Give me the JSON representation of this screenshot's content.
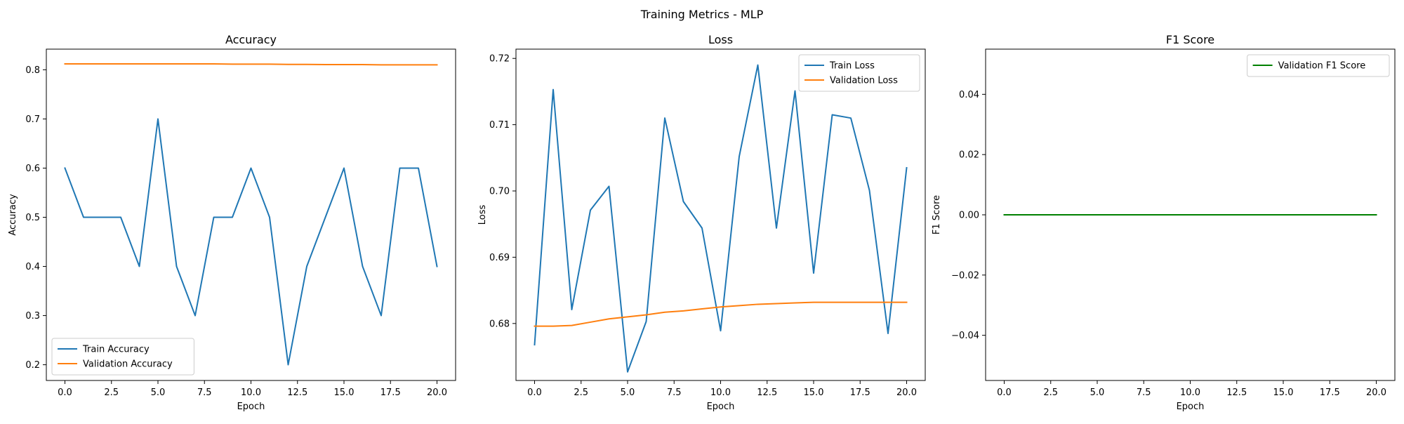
{
  "figure": {
    "suptitle": "Training Metrics - MLP"
  },
  "chart_data": [
    {
      "type": "line",
      "title": "Accuracy",
      "xlabel": "Epoch",
      "ylabel": "Accuracy",
      "xlim": [
        -1,
        21
      ],
      "ylim": [
        0.168,
        0.842
      ],
      "xticks": [
        0.0,
        2.5,
        5.0,
        7.5,
        10.0,
        12.5,
        15.0,
        17.5,
        20.0
      ],
      "xtick_labels": [
        "0.0",
        "2.5",
        "5.0",
        "7.5",
        "10.0",
        "12.5",
        "15.0",
        "17.5",
        "20.0"
      ],
      "yticks": [
        0.2,
        0.3,
        0.4,
        0.5,
        0.6,
        0.7,
        0.8
      ],
      "ytick_labels": [
        "0.2",
        "0.3",
        "0.4",
        "0.5",
        "0.6",
        "0.7",
        "0.8"
      ],
      "legend_position": "lower-left",
      "x": [
        0,
        1,
        2,
        3,
        4,
        5,
        6,
        7,
        8,
        9,
        10,
        11,
        12,
        13,
        14,
        15,
        16,
        17,
        18,
        19,
        20
      ],
      "series": [
        {
          "name": "Train Accuracy",
          "color": "#1f77b4",
          "values": [
            0.6,
            0.5,
            0.5,
            0.5,
            0.4,
            0.7,
            0.4,
            0.3,
            0.5,
            0.5,
            0.6,
            0.5,
            0.2,
            0.4,
            0.5,
            0.6,
            0.4,
            0.3,
            0.6,
            0.6,
            0.4
          ]
        },
        {
          "name": "Validation Accuracy",
          "color": "#ff7f0e",
          "values": [
            0.812,
            0.812,
            0.812,
            0.812,
            0.812,
            0.812,
            0.812,
            0.812,
            0.812,
            0.8115,
            0.8115,
            0.8115,
            0.811,
            0.811,
            0.8105,
            0.8105,
            0.8105,
            0.81,
            0.81,
            0.81,
            0.81
          ]
        }
      ]
    },
    {
      "type": "line",
      "title": "Loss",
      "xlabel": "Epoch",
      "ylabel": "Loss",
      "xlim": [
        -1,
        21
      ],
      "ylim": [
        0.6714,
        0.7214
      ],
      "xticks": [
        0.0,
        2.5,
        5.0,
        7.5,
        10.0,
        12.5,
        15.0,
        17.5,
        20.0
      ],
      "xtick_labels": [
        "0.0",
        "2.5",
        "5.0",
        "7.5",
        "10.0",
        "12.5",
        "15.0",
        "17.5",
        "20.0"
      ],
      "yticks": [
        0.68,
        0.69,
        0.7,
        0.71,
        0.72
      ],
      "ytick_labels": [
        "0.68",
        "0.69",
        "0.70",
        "0.71",
        "0.72"
      ],
      "legend_position": "upper-right",
      "x": [
        0,
        1,
        2,
        3,
        4,
        5,
        6,
        7,
        8,
        9,
        10,
        11,
        12,
        13,
        14,
        15,
        16,
        17,
        18,
        19,
        20
      ],
      "series": [
        {
          "name": "Train Loss",
          "color": "#1f77b4",
          "values": [
            0.6768,
            0.7153,
            0.6821,
            0.6971,
            0.7007,
            0.6727,
            0.6803,
            0.711,
            0.6984,
            0.6944,
            0.6789,
            0.7052,
            0.719,
            0.6944,
            0.7151,
            0.6876,
            0.7115,
            0.711,
            0.7001,
            0.6785,
            0.7035
          ]
        },
        {
          "name": "Validation Loss",
          "color": "#ff7f0e",
          "values": [
            0.6796,
            0.6796,
            0.6797,
            0.6802,
            0.6807,
            0.681,
            0.6813,
            0.6817,
            0.6819,
            0.6822,
            0.6825,
            0.6827,
            0.6829,
            0.683,
            0.6831,
            0.6832,
            0.6832,
            0.6832,
            0.6832,
            0.6832,
            0.6832
          ]
        }
      ]
    },
    {
      "type": "line",
      "title": "F1 Score",
      "xlabel": "Epoch",
      "ylabel": "F1 Score",
      "xlim": [
        -1,
        21
      ],
      "ylim": [
        -0.055,
        0.055
      ],
      "xticks": [
        0.0,
        2.5,
        5.0,
        7.5,
        10.0,
        12.5,
        15.0,
        17.5,
        20.0
      ],
      "xtick_labels": [
        "0.0",
        "2.5",
        "5.0",
        "7.5",
        "10.0",
        "12.5",
        "15.0",
        "17.5",
        "20.0"
      ],
      "yticks": [
        -0.04,
        -0.02,
        0.0,
        0.02,
        0.04
      ],
      "ytick_labels": [
        "−0.04",
        "−0.02",
        "0.00",
        "0.02",
        "0.04"
      ],
      "legend_position": "upper-right",
      "x": [
        0,
        1,
        2,
        3,
        4,
        5,
        6,
        7,
        8,
        9,
        10,
        11,
        12,
        13,
        14,
        15,
        16,
        17,
        18,
        19,
        20
      ],
      "series": [
        {
          "name": "Validation F1 Score",
          "color": "#008000",
          "values": [
            0,
            0,
            0,
            0,
            0,
            0,
            0,
            0,
            0,
            0,
            0,
            0,
            0,
            0,
            0,
            0,
            0,
            0,
            0,
            0,
            0
          ]
        }
      ]
    }
  ]
}
